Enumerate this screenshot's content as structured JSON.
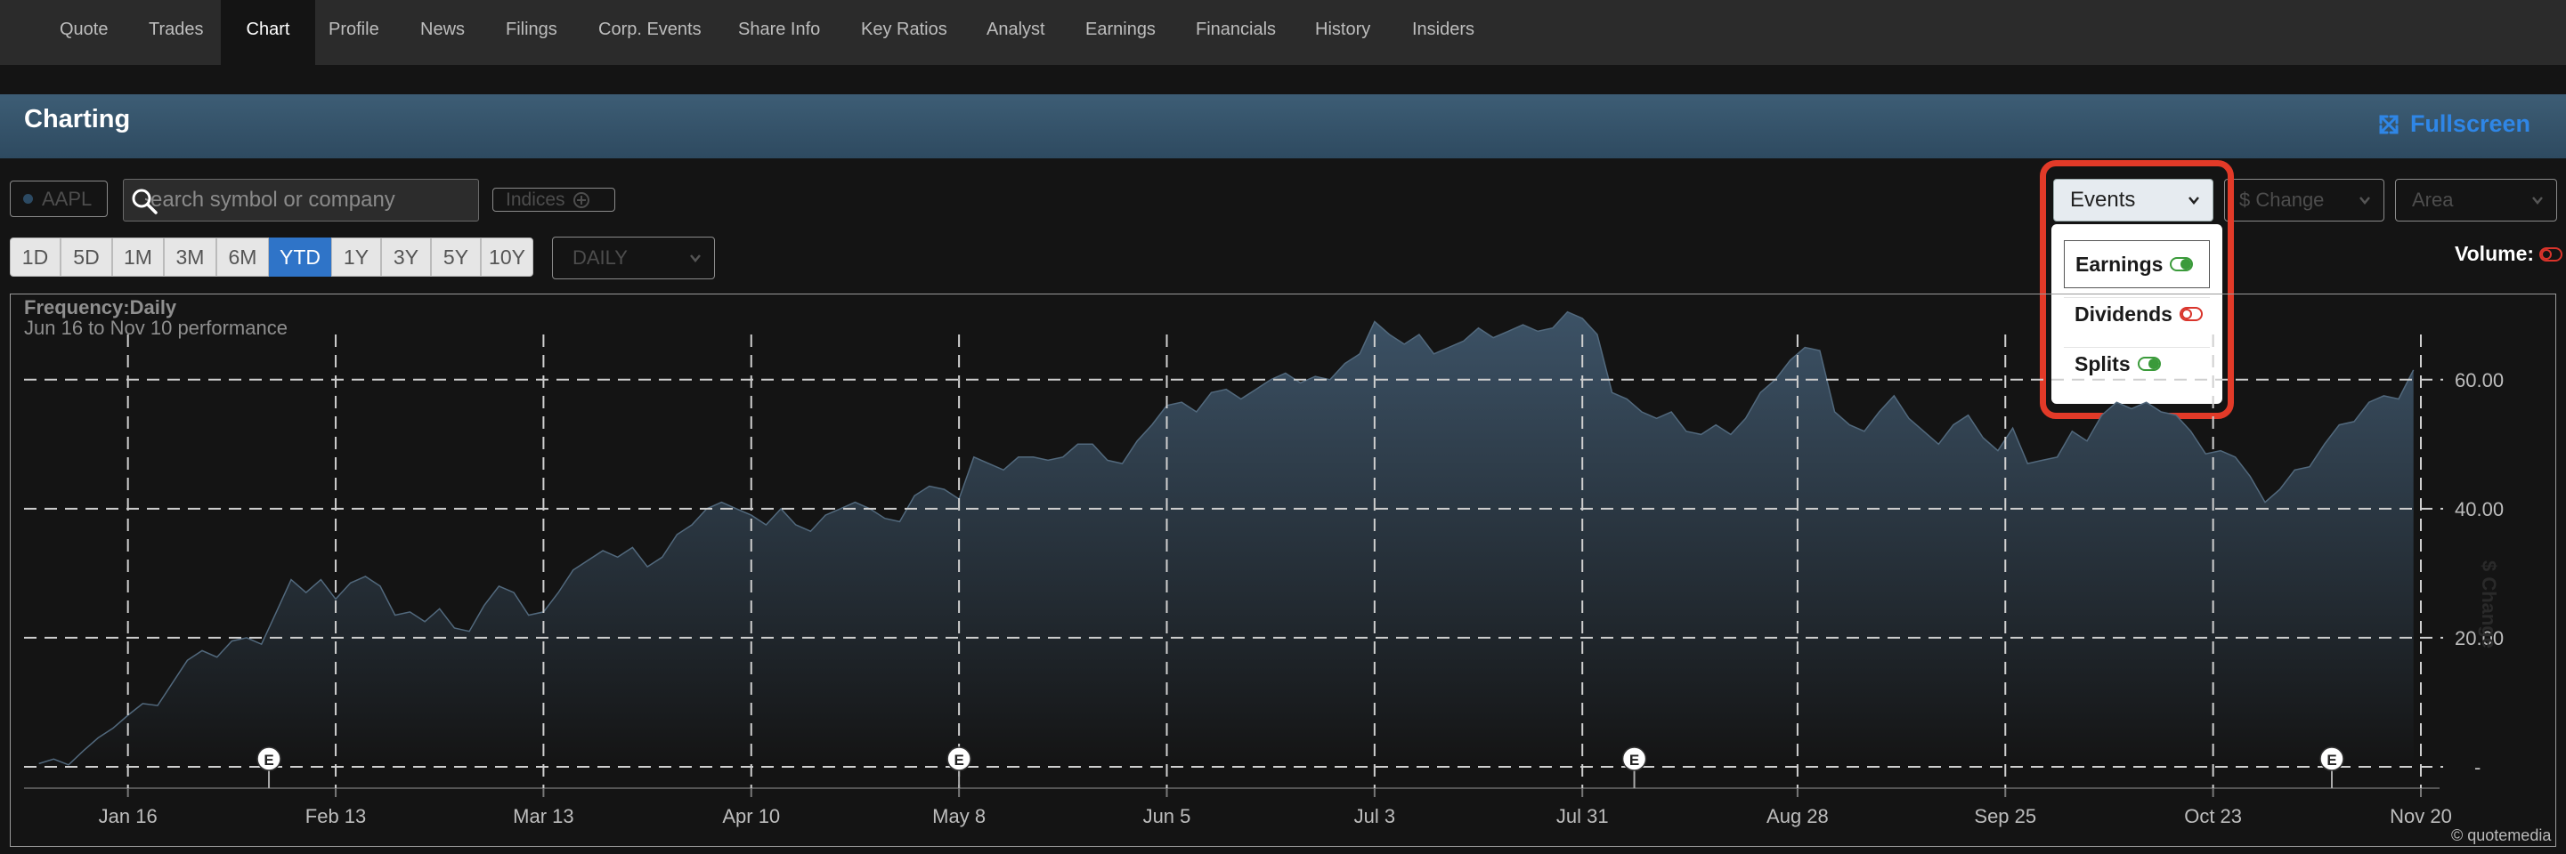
{
  "nav": {
    "tabs": [
      {
        "label": "Quote",
        "active": false
      },
      {
        "label": "Trades",
        "active": false
      },
      {
        "label": "Chart",
        "active": true
      },
      {
        "label": "Profile",
        "active": false
      },
      {
        "label": "News",
        "active": false
      },
      {
        "label": "Filings",
        "active": false
      },
      {
        "label": "Corp. Events",
        "active": false
      },
      {
        "label": "Share Info",
        "active": false
      },
      {
        "label": "Key Ratios",
        "active": false
      },
      {
        "label": "Analyst",
        "active": false
      },
      {
        "label": "Earnings",
        "active": false
      },
      {
        "label": "Financials",
        "active": false
      },
      {
        "label": "History",
        "active": false
      },
      {
        "label": "Insiders",
        "active": false
      }
    ]
  },
  "banner": {
    "title": "Charting",
    "fullscreen_label": "Fullscreen",
    "fullscreen_icon": "expand-arrows-icon"
  },
  "toolbar": {
    "symbol": "AAPL",
    "search_placeholder": "Search symbol or company",
    "indices_label": "Indices",
    "ranges": [
      {
        "label": "1D",
        "active": false
      },
      {
        "label": "5D",
        "active": false
      },
      {
        "label": "1M",
        "active": false
      },
      {
        "label": "3M",
        "active": false
      },
      {
        "label": "6M",
        "active": false
      },
      {
        "label": "YTD",
        "active": true
      },
      {
        "label": "1Y",
        "active": false
      },
      {
        "label": "3Y",
        "active": false
      },
      {
        "label": "5Y",
        "active": false
      },
      {
        "label": "10Y",
        "active": false
      }
    ],
    "frequency_select": "DAILY",
    "events_select": "Events",
    "change_select": "$ Change",
    "type_select": "Area"
  },
  "events_menu": {
    "items": [
      {
        "label": "Earnings",
        "enabled": true
      },
      {
        "label": "Dividends",
        "enabled": false
      },
      {
        "label": "Splits",
        "enabled": true
      }
    ]
  },
  "volume": {
    "label": "Volume:",
    "enabled": false
  },
  "colors": {
    "accent": "#2f74c8",
    "highlight": "#e23a28",
    "toggle_on": "#3a9a3a",
    "toggle_off": "#d9342b",
    "area_top": "#3c5266",
    "area_bottom": "#141414"
  },
  "chart_data": {
    "type": "area",
    "frequency_label": "Frequency:Daily",
    "subtitle": "Jun 16 to Nov 10 performance",
    "ylabel": "$ Change",
    "ylim": [
      0,
      67
    ],
    "y_ticks": [
      {
        "value": 0,
        "label": "-"
      },
      {
        "value": 20,
        "label": "20.00"
      },
      {
        "value": 40,
        "label": "40.00"
      },
      {
        "value": 60,
        "label": "60.00"
      }
    ],
    "x_ticks": [
      {
        "day": 12,
        "label": "Jan 16"
      },
      {
        "day": 40,
        "label": "Feb 13"
      },
      {
        "day": 68,
        "label": "Mar 13"
      },
      {
        "day": 96,
        "label": "Apr 10"
      },
      {
        "day": 124,
        "label": "May 8"
      },
      {
        "day": 152,
        "label": "Jun 5"
      },
      {
        "day": 180,
        "label": "Jul 3"
      },
      {
        "day": 208,
        "label": "Jul 31"
      },
      {
        "day": 237,
        "label": "Aug 28"
      },
      {
        "day": 265,
        "label": "Sep 25"
      },
      {
        "day": 293,
        "label": "Oct 23"
      },
      {
        "day": 321,
        "label": "Nov 20"
      }
    ],
    "x_range": [
      -2,
      324
    ],
    "grid": true,
    "event_markers": [
      {
        "day": 31,
        "label": "E"
      },
      {
        "day": 124,
        "label": "E"
      },
      {
        "day": 215,
        "label": "E"
      },
      {
        "day": 309,
        "label": "E"
      }
    ],
    "points": [
      [
        0,
        0.5
      ],
      [
        2,
        1.2
      ],
      [
        4,
        0.3
      ],
      [
        6,
        2.5
      ],
      [
        8,
        4.5
      ],
      [
        10,
        6.0
      ],
      [
        12,
        8.0
      ],
      [
        14,
        9.8
      ],
      [
        16,
        9.5
      ],
      [
        18,
        13
      ],
      [
        20,
        16.5
      ],
      [
        22,
        18
      ],
      [
        24,
        17
      ],
      [
        26,
        19.5
      ],
      [
        28,
        20
      ],
      [
        30,
        19
      ],
      [
        32,
        24
      ],
      [
        34,
        29
      ],
      [
        36,
        27
      ],
      [
        38,
        29
      ],
      [
        40,
        26
      ],
      [
        42,
        28.5
      ],
      [
        44,
        29.5
      ],
      [
        46,
        28
      ],
      [
        48,
        23.5
      ],
      [
        50,
        24
      ],
      [
        52,
        22.5
      ],
      [
        54,
        24.5
      ],
      [
        56,
        21.5
      ],
      [
        58,
        21
      ],
      [
        60,
        25
      ],
      [
        62,
        28
      ],
      [
        64,
        27
      ],
      [
        66,
        23.5
      ],
      [
        68,
        24
      ],
      [
        70,
        27
      ],
      [
        72,
        30.5
      ],
      [
        74,
        32
      ],
      [
        76,
        33.5
      ],
      [
        78,
        32.5
      ],
      [
        80,
        34
      ],
      [
        82,
        31
      ],
      [
        84,
        32.5
      ],
      [
        86,
        36
      ],
      [
        88,
        37.5
      ],
      [
        90,
        40
      ],
      [
        92,
        41
      ],
      [
        94,
        40
      ],
      [
        96,
        39
      ],
      [
        98,
        37.5
      ],
      [
        100,
        40
      ],
      [
        102,
        37.5
      ],
      [
        104,
        36.5
      ],
      [
        106,
        39
      ],
      [
        108,
        40
      ],
      [
        110,
        41
      ],
      [
        112,
        40
      ],
      [
        114,
        38.5
      ],
      [
        116,
        38
      ],
      [
        118,
        42
      ],
      [
        120,
        43.5
      ],
      [
        122,
        43
      ],
      [
        124,
        41.5
      ],
      [
        126,
        48
      ],
      [
        128,
        47
      ],
      [
        130,
        46
      ],
      [
        132,
        48
      ],
      [
        134,
        48
      ],
      [
        136,
        47.5
      ],
      [
        138,
        48
      ],
      [
        140,
        50
      ],
      [
        142,
        50
      ],
      [
        144,
        47.5
      ],
      [
        146,
        47
      ],
      [
        148,
        50.5
      ],
      [
        150,
        53
      ],
      [
        152,
        56
      ],
      [
        154,
        56.5
      ],
      [
        156,
        55
      ],
      [
        158,
        58
      ],
      [
        160,
        58.5
      ],
      [
        162,
        57
      ],
      [
        164,
        58.5
      ],
      [
        166,
        60
      ],
      [
        168,
        61
      ],
      [
        170,
        59.5
      ],
      [
        172,
        60.5
      ],
      [
        174,
        60
      ],
      [
        176,
        62.5
      ],
      [
        178,
        64
      ],
      [
        180,
        69
      ],
      [
        182,
        67
      ],
      [
        184,
        65.5
      ],
      [
        186,
        67
      ],
      [
        188,
        64
      ],
      [
        190,
        65
      ],
      [
        192,
        66
      ],
      [
        194,
        68
      ],
      [
        196,
        66.5
      ],
      [
        198,
        67.5
      ],
      [
        200,
        68.5
      ],
      [
        202,
        67.5
      ],
      [
        204,
        68
      ],
      [
        206,
        70.5
      ],
      [
        208,
        69.5
      ],
      [
        210,
        67
      ],
      [
        212,
        58
      ],
      [
        214,
        57
      ],
      [
        216,
        55
      ],
      [
        218,
        54
      ],
      [
        220,
        55
      ],
      [
        222,
        52
      ],
      [
        224,
        51.5
      ],
      [
        226,
        53
      ],
      [
        228,
        51.5
      ],
      [
        230,
        54
      ],
      [
        232,
        58
      ],
      [
        234,
        60
      ],
      [
        236,
        63
      ],
      [
        238,
        65
      ],
      [
        240,
        64.5
      ],
      [
        242,
        55
      ],
      [
        244,
        53
      ],
      [
        246,
        52
      ],
      [
        248,
        55
      ],
      [
        250,
        57.5
      ],
      [
        252,
        54
      ],
      [
        254,
        52
      ],
      [
        256,
        50
      ],
      [
        258,
        53
      ],
      [
        260,
        54.5
      ],
      [
        262,
        51
      ],
      [
        264,
        49
      ],
      [
        266,
        52.5
      ],
      [
        268,
        47
      ],
      [
        270,
        47.5
      ],
      [
        272,
        48
      ],
      [
        274,
        52
      ],
      [
        276,
        50.5
      ],
      [
        278,
        54.5
      ],
      [
        280,
        56.5
      ],
      [
        282,
        55.5
      ],
      [
        284,
        56.5
      ],
      [
        286,
        55
      ],
      [
        288,
        54.5
      ],
      [
        290,
        52
      ],
      [
        292,
        48.5
      ],
      [
        294,
        49
      ],
      [
        296,
        48
      ],
      [
        298,
        45
      ],
      [
        300,
        41
      ],
      [
        302,
        43
      ],
      [
        304,
        46
      ],
      [
        306,
        46.5
      ],
      [
        308,
        50
      ],
      [
        310,
        53
      ],
      [
        312,
        53.5
      ],
      [
        314,
        56.5
      ],
      [
        316,
        57.5
      ],
      [
        318,
        57
      ],
      [
        320,
        61.5
      ]
    ]
  }
}
